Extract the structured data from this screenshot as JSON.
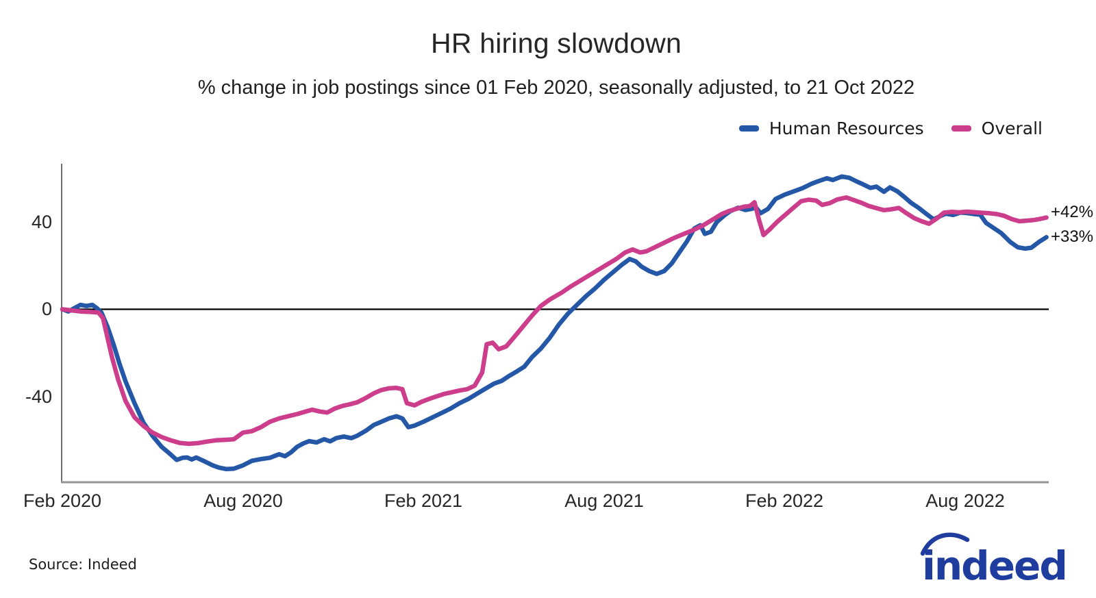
{
  "title": "HR hiring slowdown",
  "subtitle": "% change in job postings since 01 Feb 2020, seasonally adjusted, to 21 Oct 2022",
  "source": "Source: Indeed",
  "logo_text": "indeed",
  "logo_color": "#1F3D9E",
  "legend": [
    {
      "label": "Human Resources",
      "color": "#2557A7"
    },
    {
      "label": "Overall",
      "color": "#CC3D8C"
    }
  ],
  "chart_data": {
    "type": "line",
    "title": "HR hiring slowdown",
    "xlabel": "",
    "ylabel": "% change in job postings since 01 Feb 2020",
    "x_unit": "months since 01 Feb 2020",
    "xlim": [
      0,
      32.9
    ],
    "ylim": [
      -79,
      67
    ],
    "grid": false,
    "legend_position": "top-right",
    "zero_line": true,
    "y_ticks": [
      {
        "value": 40,
        "label": "40"
      },
      {
        "value": 0,
        "label": "0"
      },
      {
        "value": -40,
        "label": "-40"
      }
    ],
    "x_ticks": [
      {
        "month": 0,
        "label": "Feb 2020"
      },
      {
        "month": 6,
        "label": "Aug 2020"
      },
      {
        "month": 12,
        "label": "Feb 2021"
      },
      {
        "month": 18,
        "label": "Aug 2021"
      },
      {
        "month": 24,
        "label": "Feb 2022"
      },
      {
        "month": 30,
        "label": "Aug 2022"
      }
    ],
    "end_labels": [
      {
        "series": "Overall",
        "text": "+42%"
      },
      {
        "series": "Human Resources",
        "text": "+33%"
      }
    ],
    "series": [
      {
        "name": "Human Resources",
        "color": "#2557A7",
        "end_value": 33,
        "points": [
          [
            0,
            0
          ],
          [
            0.2,
            -1
          ],
          [
            0.4,
            0.5
          ],
          [
            0.6,
            2
          ],
          [
            0.8,
            1.5
          ],
          [
            1.0,
            2
          ],
          [
            1.15,
            0.5
          ],
          [
            1.3,
            -1.5
          ],
          [
            1.5,
            -8
          ],
          [
            1.7,
            -16
          ],
          [
            1.9,
            -25
          ],
          [
            2.1,
            -33
          ],
          [
            2.4,
            -43
          ],
          [
            2.7,
            -52
          ],
          [
            3.0,
            -58
          ],
          [
            3.3,
            -63
          ],
          [
            3.6,
            -66.5
          ],
          [
            3.8,
            -69
          ],
          [
            4.0,
            -68
          ],
          [
            4.15,
            -67.9
          ],
          [
            4.3,
            -68.8
          ],
          [
            4.45,
            -67.9
          ],
          [
            4.7,
            -69.5
          ],
          [
            5.0,
            -71.5
          ],
          [
            5.2,
            -72.5
          ],
          [
            5.45,
            -73.2
          ],
          [
            5.7,
            -73
          ],
          [
            6.0,
            -71.5
          ],
          [
            6.3,
            -69.4
          ],
          [
            6.6,
            -68.6
          ],
          [
            6.9,
            -68
          ],
          [
            7.2,
            -66.4
          ],
          [
            7.4,
            -67.3
          ],
          [
            7.6,
            -65.5
          ],
          [
            7.8,
            -63
          ],
          [
            8.0,
            -61.5
          ],
          [
            8.2,
            -60.4
          ],
          [
            8.45,
            -61
          ],
          [
            8.7,
            -59.5
          ],
          [
            8.9,
            -60.5
          ],
          [
            9.1,
            -59
          ],
          [
            9.35,
            -58.3
          ],
          [
            9.6,
            -59
          ],
          [
            9.8,
            -57.9
          ],
          [
            10.1,
            -55.5
          ],
          [
            10.35,
            -53
          ],
          [
            10.6,
            -51.5
          ],
          [
            10.85,
            -50
          ],
          [
            11.1,
            -49
          ],
          [
            11.3,
            -50
          ],
          [
            11.5,
            -54
          ],
          [
            11.7,
            -53.3
          ],
          [
            12.0,
            -51.5
          ],
          [
            12.3,
            -49.5
          ],
          [
            12.6,
            -47.5
          ],
          [
            12.9,
            -45.5
          ],
          [
            13.2,
            -43
          ],
          [
            13.5,
            -41
          ],
          [
            13.8,
            -38.5
          ],
          [
            14.1,
            -36
          ],
          [
            14.35,
            -34
          ],
          [
            14.6,
            -32.8
          ],
          [
            14.85,
            -30.5
          ],
          [
            15.1,
            -28.5
          ],
          [
            15.35,
            -26.3
          ],
          [
            15.6,
            -22
          ],
          [
            15.9,
            -18
          ],
          [
            16.2,
            -13
          ],
          [
            16.5,
            -7
          ],
          [
            16.8,
            -2
          ],
          [
            17.1,
            2
          ],
          [
            17.4,
            6
          ],
          [
            17.7,
            9.5
          ],
          [
            18.0,
            13.5
          ],
          [
            18.3,
            17
          ],
          [
            18.6,
            20.5
          ],
          [
            18.85,
            23
          ],
          [
            19.05,
            22
          ],
          [
            19.25,
            19.5
          ],
          [
            19.5,
            17.5
          ],
          [
            19.75,
            16.2
          ],
          [
            20.0,
            17.5
          ],
          [
            20.25,
            21
          ],
          [
            20.5,
            26
          ],
          [
            20.75,
            31
          ],
          [
            21.0,
            37
          ],
          [
            21.2,
            38.5
          ],
          [
            21.35,
            34.5
          ],
          [
            21.55,
            35.5
          ],
          [
            21.75,
            40
          ],
          [
            22.0,
            43
          ],
          [
            22.2,
            45
          ],
          [
            22.45,
            46.5
          ],
          [
            22.7,
            45.5
          ],
          [
            22.9,
            46
          ],
          [
            23.05,
            46.6
          ],
          [
            23.2,
            44
          ],
          [
            23.45,
            46
          ],
          [
            23.7,
            50.5
          ],
          [
            24.0,
            52.5
          ],
          [
            24.3,
            54
          ],
          [
            24.6,
            55.5
          ],
          [
            24.9,
            57.5
          ],
          [
            25.15,
            58.8
          ],
          [
            25.4,
            60
          ],
          [
            25.6,
            59.2
          ],
          [
            25.9,
            60.8
          ],
          [
            26.15,
            60.2
          ],
          [
            26.4,
            58.5
          ],
          [
            26.6,
            57.3
          ],
          [
            26.85,
            55.6
          ],
          [
            27.05,
            56.2
          ],
          [
            27.3,
            53.8
          ],
          [
            27.5,
            55.8
          ],
          [
            27.75,
            54
          ],
          [
            28.0,
            51.2
          ],
          [
            28.2,
            48.8
          ],
          [
            28.45,
            46.5
          ],
          [
            28.7,
            43.8
          ],
          [
            28.95,
            41.2
          ],
          [
            29.15,
            42.5
          ],
          [
            29.35,
            43.8
          ],
          [
            29.6,
            43.2
          ],
          [
            29.85,
            44.3
          ],
          [
            30.1,
            44
          ],
          [
            30.3,
            43.6
          ],
          [
            30.5,
            43.3
          ],
          [
            30.7,
            39.5
          ],
          [
            30.95,
            37.2
          ],
          [
            31.2,
            34.9
          ],
          [
            31.5,
            30.8
          ],
          [
            31.75,
            28.4
          ],
          [
            32.0,
            27.8
          ],
          [
            32.2,
            28.2
          ],
          [
            32.45,
            30.8
          ],
          [
            32.7,
            33
          ]
        ]
      },
      {
        "name": "Overall",
        "color": "#CC3D8C",
        "end_value": 42,
        "points": [
          [
            0,
            0
          ],
          [
            0.3,
            -0.5
          ],
          [
            0.6,
            -1
          ],
          [
            0.9,
            -1.2
          ],
          [
            1.2,
            -1.5
          ],
          [
            1.35,
            -4
          ],
          [
            1.5,
            -13
          ],
          [
            1.65,
            -22
          ],
          [
            1.85,
            -32
          ],
          [
            2.1,
            -42
          ],
          [
            2.4,
            -49.5
          ],
          [
            2.7,
            -53.5
          ],
          [
            3.0,
            -56.5
          ],
          [
            3.3,
            -58.5
          ],
          [
            3.6,
            -60
          ],
          [
            3.9,
            -61.2
          ],
          [
            4.2,
            -61.6
          ],
          [
            4.5,
            -61.3
          ],
          [
            4.8,
            -60.6
          ],
          [
            5.1,
            -60
          ],
          [
            5.4,
            -59.8
          ],
          [
            5.7,
            -59.5
          ],
          [
            6.0,
            -56.5
          ],
          [
            6.3,
            -55.8
          ],
          [
            6.6,
            -54
          ],
          [
            6.9,
            -51.5
          ],
          [
            7.2,
            -50
          ],
          [
            7.5,
            -49
          ],
          [
            7.8,
            -48
          ],
          [
            8.05,
            -47
          ],
          [
            8.3,
            -46
          ],
          [
            8.55,
            -46.8
          ],
          [
            8.8,
            -47.3
          ],
          [
            9.05,
            -45.5
          ],
          [
            9.3,
            -44.3
          ],
          [
            9.55,
            -43.5
          ],
          [
            9.8,
            -42.6
          ],
          [
            10.1,
            -40.5
          ],
          [
            10.35,
            -38.5
          ],
          [
            10.6,
            -37
          ],
          [
            10.85,
            -36.2
          ],
          [
            11.1,
            -36
          ],
          [
            11.3,
            -36.6
          ],
          [
            11.45,
            -43
          ],
          [
            11.7,
            -44
          ],
          [
            11.95,
            -42.3
          ],
          [
            12.2,
            -41
          ],
          [
            12.45,
            -39.8
          ],
          [
            12.7,
            -38.7
          ],
          [
            12.95,
            -38
          ],
          [
            13.2,
            -37.2
          ],
          [
            13.45,
            -36.6
          ],
          [
            13.7,
            -35
          ],
          [
            13.95,
            -29
          ],
          [
            14.1,
            -16
          ],
          [
            14.3,
            -15.3
          ],
          [
            14.5,
            -18.3
          ],
          [
            14.75,
            -17
          ],
          [
            15.0,
            -13
          ],
          [
            15.3,
            -8
          ],
          [
            15.6,
            -3
          ],
          [
            15.9,
            1.5
          ],
          [
            16.2,
            4.5
          ],
          [
            16.6,
            7.7
          ],
          [
            16.9,
            10.5
          ],
          [
            17.2,
            13
          ],
          [
            17.5,
            15.5
          ],
          [
            17.8,
            18
          ],
          [
            18.1,
            20.5
          ],
          [
            18.4,
            23
          ],
          [
            18.7,
            26
          ],
          [
            18.95,
            27.4
          ],
          [
            19.2,
            26
          ],
          [
            19.4,
            26.5
          ],
          [
            19.7,
            28.5
          ],
          [
            20.0,
            30.5
          ],
          [
            20.3,
            32.5
          ],
          [
            20.65,
            34.5
          ],
          [
            21.0,
            36.5
          ],
          [
            21.3,
            38.5
          ],
          [
            21.6,
            41
          ],
          [
            21.9,
            43.5
          ],
          [
            22.15,
            45
          ],
          [
            22.4,
            46
          ],
          [
            22.65,
            47
          ],
          [
            22.85,
            47.3
          ],
          [
            23.0,
            49
          ],
          [
            23.15,
            41
          ],
          [
            23.3,
            34
          ],
          [
            23.5,
            36.5
          ],
          [
            23.75,
            40
          ],
          [
            24.0,
            43
          ],
          [
            24.25,
            46
          ],
          [
            24.55,
            49.5
          ],
          [
            24.8,
            50.2
          ],
          [
            25.05,
            49.8
          ],
          [
            25.25,
            47.8
          ],
          [
            25.5,
            48.6
          ],
          [
            25.75,
            50.3
          ],
          [
            26.05,
            51.2
          ],
          [
            26.3,
            50
          ],
          [
            26.55,
            48.8
          ],
          [
            26.8,
            47.3
          ],
          [
            27.05,
            46.3
          ],
          [
            27.3,
            45.4
          ],
          [
            27.55,
            45.8
          ],
          [
            27.8,
            46.4
          ],
          [
            28.05,
            44
          ],
          [
            28.3,
            41.8
          ],
          [
            28.55,
            40.3
          ],
          [
            28.8,
            39.2
          ],
          [
            29.05,
            41.5
          ],
          [
            29.3,
            44.3
          ],
          [
            29.55,
            44.6
          ],
          [
            29.8,
            44.4
          ],
          [
            30.05,
            44.7
          ],
          [
            30.3,
            44.5
          ],
          [
            30.55,
            44.2
          ],
          [
            30.8,
            44
          ],
          [
            31.05,
            43.6
          ],
          [
            31.3,
            42.8
          ],
          [
            31.55,
            41.3
          ],
          [
            31.8,
            40.3
          ],
          [
            32.05,
            40.6
          ],
          [
            32.3,
            40.9
          ],
          [
            32.5,
            41.4
          ],
          [
            32.7,
            42
          ]
        ]
      }
    ]
  }
}
